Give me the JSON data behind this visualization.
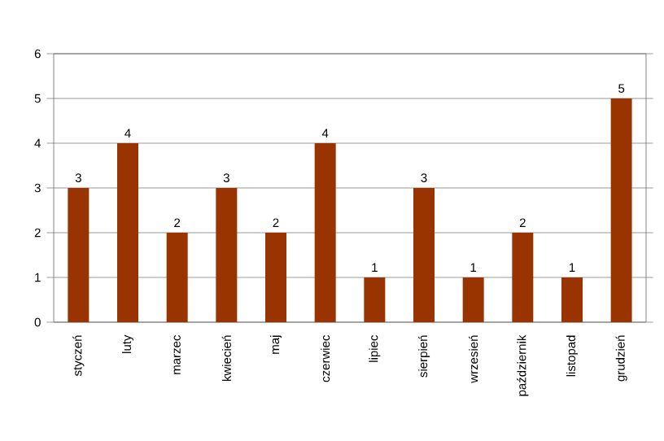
{
  "chart_data": {
    "type": "bar",
    "categories": [
      "styczeń",
      "luty",
      "marzec",
      "kwiecień",
      "maj",
      "czerwiec",
      "lipiec",
      "sierpień",
      "wrzesień",
      "październik",
      "listopad",
      "grudzień"
    ],
    "values": [
      3,
      4,
      2,
      3,
      2,
      4,
      1,
      3,
      1,
      2,
      1,
      5
    ],
    "color": "#993300",
    "ylim": [
      0,
      6
    ],
    "yticks": [
      0,
      1,
      2,
      3,
      4,
      5,
      6
    ],
    "grid": "y",
    "data_labels": true
  }
}
